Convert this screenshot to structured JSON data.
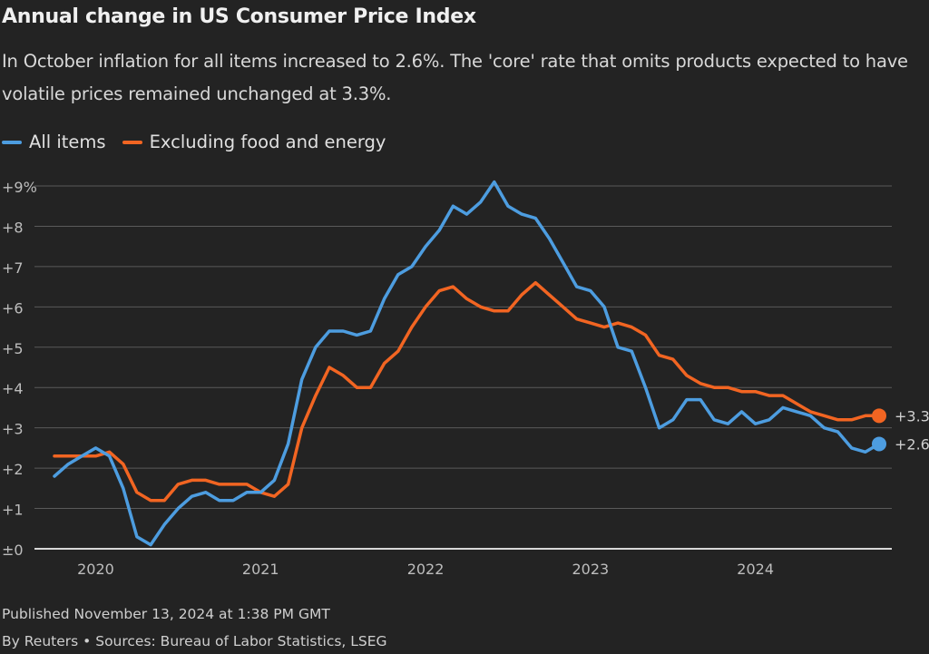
{
  "chart_data": {
    "type": "line",
    "title": "Annual change in US Consumer Price Index",
    "subtitle": "In October inflation for all items increased to 2.6%. The 'core' rate that omits products expected to have volatile prices remained unchanged at 3.3%.",
    "x_start": "2019-10",
    "x_end": "2024-10",
    "x_frequency": "monthly",
    "x_tick_labels": [
      "2020",
      "2021",
      "2022",
      "2023",
      "2024"
    ],
    "y_tick_labels": [
      "±0",
      "+1",
      "+2",
      "+3",
      "+4",
      "+5",
      "+6",
      "+7",
      "+8",
      "+9%"
    ],
    "ylim": [
      0,
      9
    ],
    "grid": true,
    "legend_position": "top-left",
    "series": [
      {
        "name": "All items",
        "color": "#4d9de0",
        "end_label": "+2.6",
        "values": [
          1.8,
          2.1,
          2.3,
          2.5,
          2.3,
          1.5,
          0.3,
          0.1,
          0.6,
          1.0,
          1.3,
          1.4,
          1.2,
          1.2,
          1.4,
          1.4,
          1.7,
          2.6,
          4.2,
          5.0,
          5.4,
          5.4,
          5.3,
          5.4,
          6.2,
          6.8,
          7.0,
          7.5,
          7.9,
          8.5,
          8.3,
          8.6,
          9.1,
          8.5,
          8.3,
          8.2,
          7.7,
          7.1,
          6.5,
          6.4,
          6.0,
          5.0,
          4.9,
          4.0,
          3.0,
          3.2,
          3.7,
          3.7,
          3.2,
          3.1,
          3.4,
          3.1,
          3.2,
          3.5,
          3.4,
          3.3,
          3.0,
          2.9,
          2.5,
          2.4,
          2.6
        ]
      },
      {
        "name": "Excluding food and energy",
        "color": "#f26522",
        "end_label": "+3.3",
        "values": [
          2.3,
          2.3,
          2.3,
          2.3,
          2.4,
          2.1,
          1.4,
          1.2,
          1.2,
          1.6,
          1.7,
          1.7,
          1.6,
          1.6,
          1.6,
          1.4,
          1.3,
          1.6,
          3.0,
          3.8,
          4.5,
          4.3,
          4.0,
          4.0,
          4.6,
          4.9,
          5.5,
          6.0,
          6.4,
          6.5,
          6.2,
          6.0,
          5.9,
          5.9,
          6.3,
          6.6,
          6.3,
          6.0,
          5.7,
          5.6,
          5.5,
          5.6,
          5.5,
          5.3,
          4.8,
          4.7,
          4.3,
          4.1,
          4.0,
          4.0,
          3.9,
          3.9,
          3.8,
          3.8,
          3.6,
          3.4,
          3.3,
          3.2,
          3.2,
          3.3,
          3.3
        ]
      }
    ]
  },
  "footer": {
    "published": "Published November 13, 2024 at 1:38 PM GMT",
    "credits": "By Reuters • Sources: Bureau of Labor Statistics, LSEG"
  }
}
